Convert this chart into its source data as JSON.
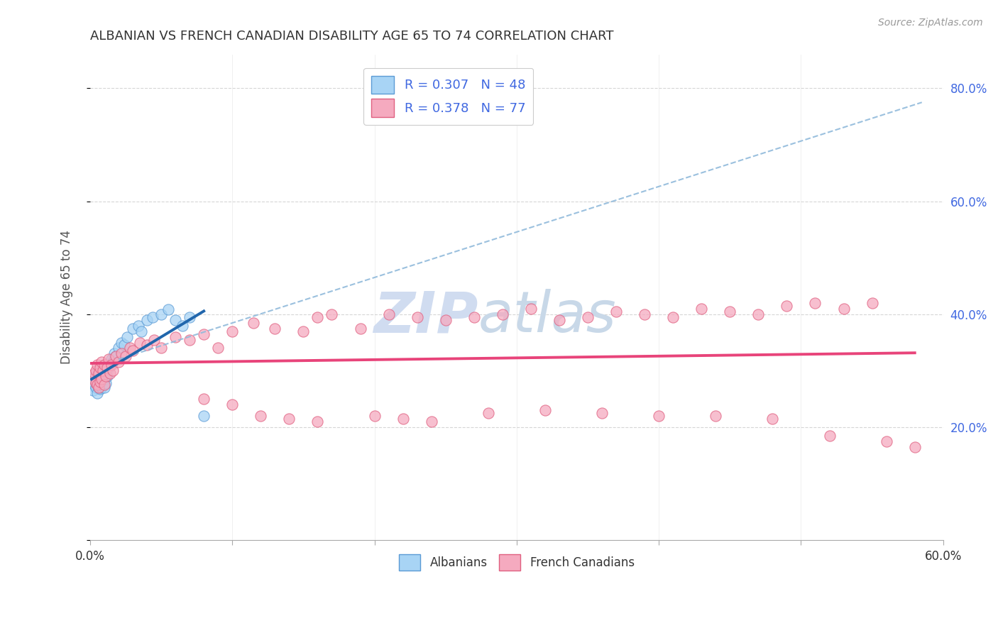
{
  "title": "ALBANIAN VS FRENCH CANADIAN DISABILITY AGE 65 TO 74 CORRELATION CHART",
  "source": "Source: ZipAtlas.com",
  "ylabel": "Disability Age 65 to 74",
  "xlim": [
    0.0,
    0.6
  ],
  "ylim": [
    0.0,
    0.86
  ],
  "albanian_R": 0.307,
  "albanian_N": 48,
  "french_R": 0.378,
  "french_N": 77,
  "albanians_fill": "#A8D4F5",
  "albanians_edge": "#5B9BD5",
  "french_fill": "#F5AABF",
  "french_edge": "#E06080",
  "albanian_line_color": "#2166AC",
  "french_line_color": "#E8447A",
  "dashed_line_color": "#90BADB",
  "background_color": "#FFFFFF",
  "grid_color": "#CCCCCC",
  "right_tick_color": "#4169E1",
  "watermark_zip_color": "#D0DCF0",
  "watermark_atlas_color": "#C8D8E8",
  "title_color": "#333333",
  "source_color": "#999999",
  "ylabel_color": "#555555",
  "alb_x": [
    0.002,
    0.003,
    0.003,
    0.004,
    0.004,
    0.004,
    0.005,
    0.005,
    0.005,
    0.006,
    0.006,
    0.006,
    0.006,
    0.007,
    0.007,
    0.007,
    0.008,
    0.008,
    0.008,
    0.009,
    0.009,
    0.01,
    0.01,
    0.01,
    0.011,
    0.011,
    0.012,
    0.013,
    0.014,
    0.015,
    0.016,
    0.017,
    0.018,
    0.02,
    0.022,
    0.024,
    0.026,
    0.03,
    0.034,
    0.036,
    0.04,
    0.044,
    0.05,
    0.055,
    0.06,
    0.065,
    0.07,
    0.08
  ],
  "alb_y": [
    0.265,
    0.275,
    0.285,
    0.27,
    0.28,
    0.295,
    0.26,
    0.275,
    0.29,
    0.27,
    0.28,
    0.29,
    0.3,
    0.268,
    0.28,
    0.295,
    0.27,
    0.285,
    0.3,
    0.275,
    0.29,
    0.27,
    0.285,
    0.31,
    0.278,
    0.295,
    0.29,
    0.305,
    0.31,
    0.32,
    0.315,
    0.33,
    0.325,
    0.34,
    0.35,
    0.345,
    0.36,
    0.375,
    0.38,
    0.37,
    0.39,
    0.395,
    0.4,
    0.408,
    0.39,
    0.38,
    0.395,
    0.22
  ],
  "fr_x": [
    0.002,
    0.003,
    0.004,
    0.004,
    0.005,
    0.005,
    0.006,
    0.006,
    0.007,
    0.007,
    0.008,
    0.008,
    0.009,
    0.01,
    0.01,
    0.011,
    0.012,
    0.013,
    0.014,
    0.015,
    0.016,
    0.018,
    0.02,
    0.022,
    0.025,
    0.028,
    0.03,
    0.035,
    0.04,
    0.045,
    0.05,
    0.06,
    0.07,
    0.08,
    0.09,
    0.1,
    0.115,
    0.13,
    0.15,
    0.16,
    0.17,
    0.19,
    0.21,
    0.23,
    0.25,
    0.27,
    0.29,
    0.31,
    0.33,
    0.35,
    0.37,
    0.39,
    0.41,
    0.43,
    0.45,
    0.47,
    0.49,
    0.51,
    0.53,
    0.55,
    0.08,
    0.1,
    0.12,
    0.14,
    0.16,
    0.2,
    0.22,
    0.24,
    0.28,
    0.32,
    0.36,
    0.4,
    0.44,
    0.48,
    0.52,
    0.56,
    0.58
  ],
  "fr_y": [
    0.285,
    0.295,
    0.278,
    0.3,
    0.275,
    0.31,
    0.27,
    0.295,
    0.28,
    0.305,
    0.285,
    0.315,
    0.3,
    0.275,
    0.31,
    0.29,
    0.305,
    0.32,
    0.295,
    0.31,
    0.3,
    0.325,
    0.315,
    0.33,
    0.325,
    0.34,
    0.335,
    0.35,
    0.345,
    0.355,
    0.34,
    0.36,
    0.355,
    0.365,
    0.34,
    0.37,
    0.385,
    0.375,
    0.37,
    0.395,
    0.4,
    0.375,
    0.4,
    0.395,
    0.39,
    0.395,
    0.4,
    0.41,
    0.39,
    0.395,
    0.405,
    0.4,
    0.395,
    0.41,
    0.405,
    0.4,
    0.415,
    0.42,
    0.41,
    0.42,
    0.25,
    0.24,
    0.22,
    0.215,
    0.21,
    0.22,
    0.215,
    0.21,
    0.225,
    0.23,
    0.225,
    0.22,
    0.22,
    0.215,
    0.185,
    0.175,
    0.165
  ]
}
